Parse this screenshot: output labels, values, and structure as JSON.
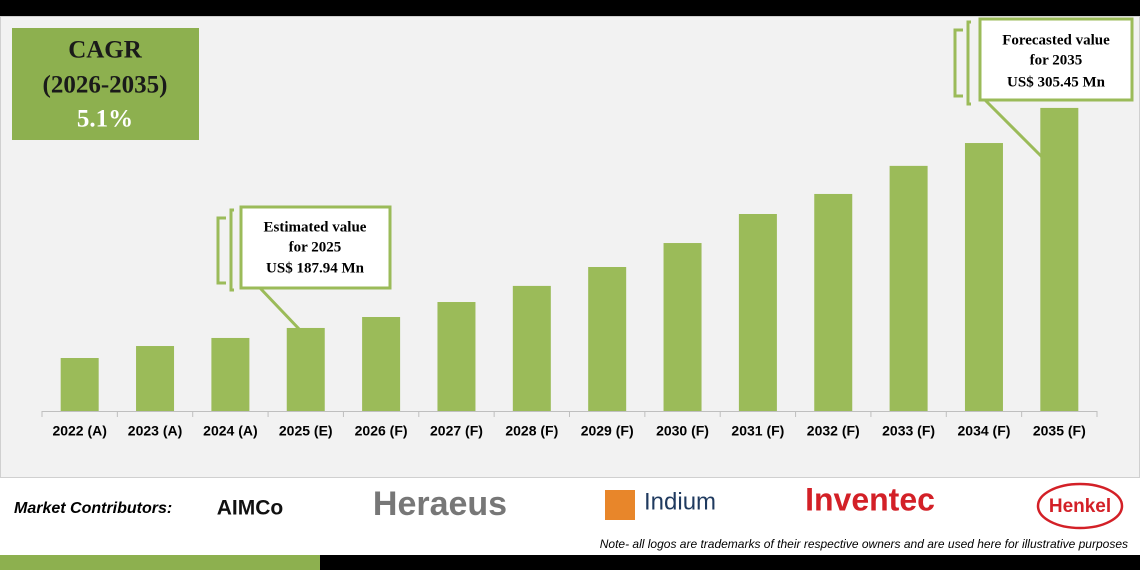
{
  "chart_data": {
    "type": "bar",
    "categories": [
      "2022 (A)",
      "2023 (A)",
      "2024 (A)",
      "2025 (E)",
      "2026 (F)",
      "2027 (F)",
      "2028 (F)",
      "2029 (F)",
      "2030 (F)",
      "2031 (F)",
      "2032 (F)",
      "2033 (F)",
      "2034 (F)",
      "2035 (F)"
    ],
    "values": [
      171.9,
      178.3,
      182.6,
      187.94,
      193.8,
      201.8,
      210.4,
      220.5,
      233.3,
      248.8,
      259.5,
      274.5,
      286.7,
      305.45
    ],
    "color": "#9bbb59",
    "ylim": [
      143.6,
      352.4
    ],
    "cagr": {
      "title": "CAGR",
      "period": "(2026-2035)",
      "value": "5.1%"
    },
    "annotations": [
      {
        "lines": [
          "Estimated value",
          "for 2025",
          "US$ 187.94 Mn"
        ]
      },
      {
        "lines": [
          "Forecasted value",
          "for 2035",
          "US$ 305.45 Mn"
        ]
      }
    ]
  },
  "contributors": {
    "label": "Market Contributors:",
    "logos": [
      "AIMCo",
      "Heraeus",
      "Indium",
      "Inventec",
      "Henkel"
    ]
  },
  "note": "Note- all logos are trademarks of their respective owners and are used here for illustrative purposes"
}
